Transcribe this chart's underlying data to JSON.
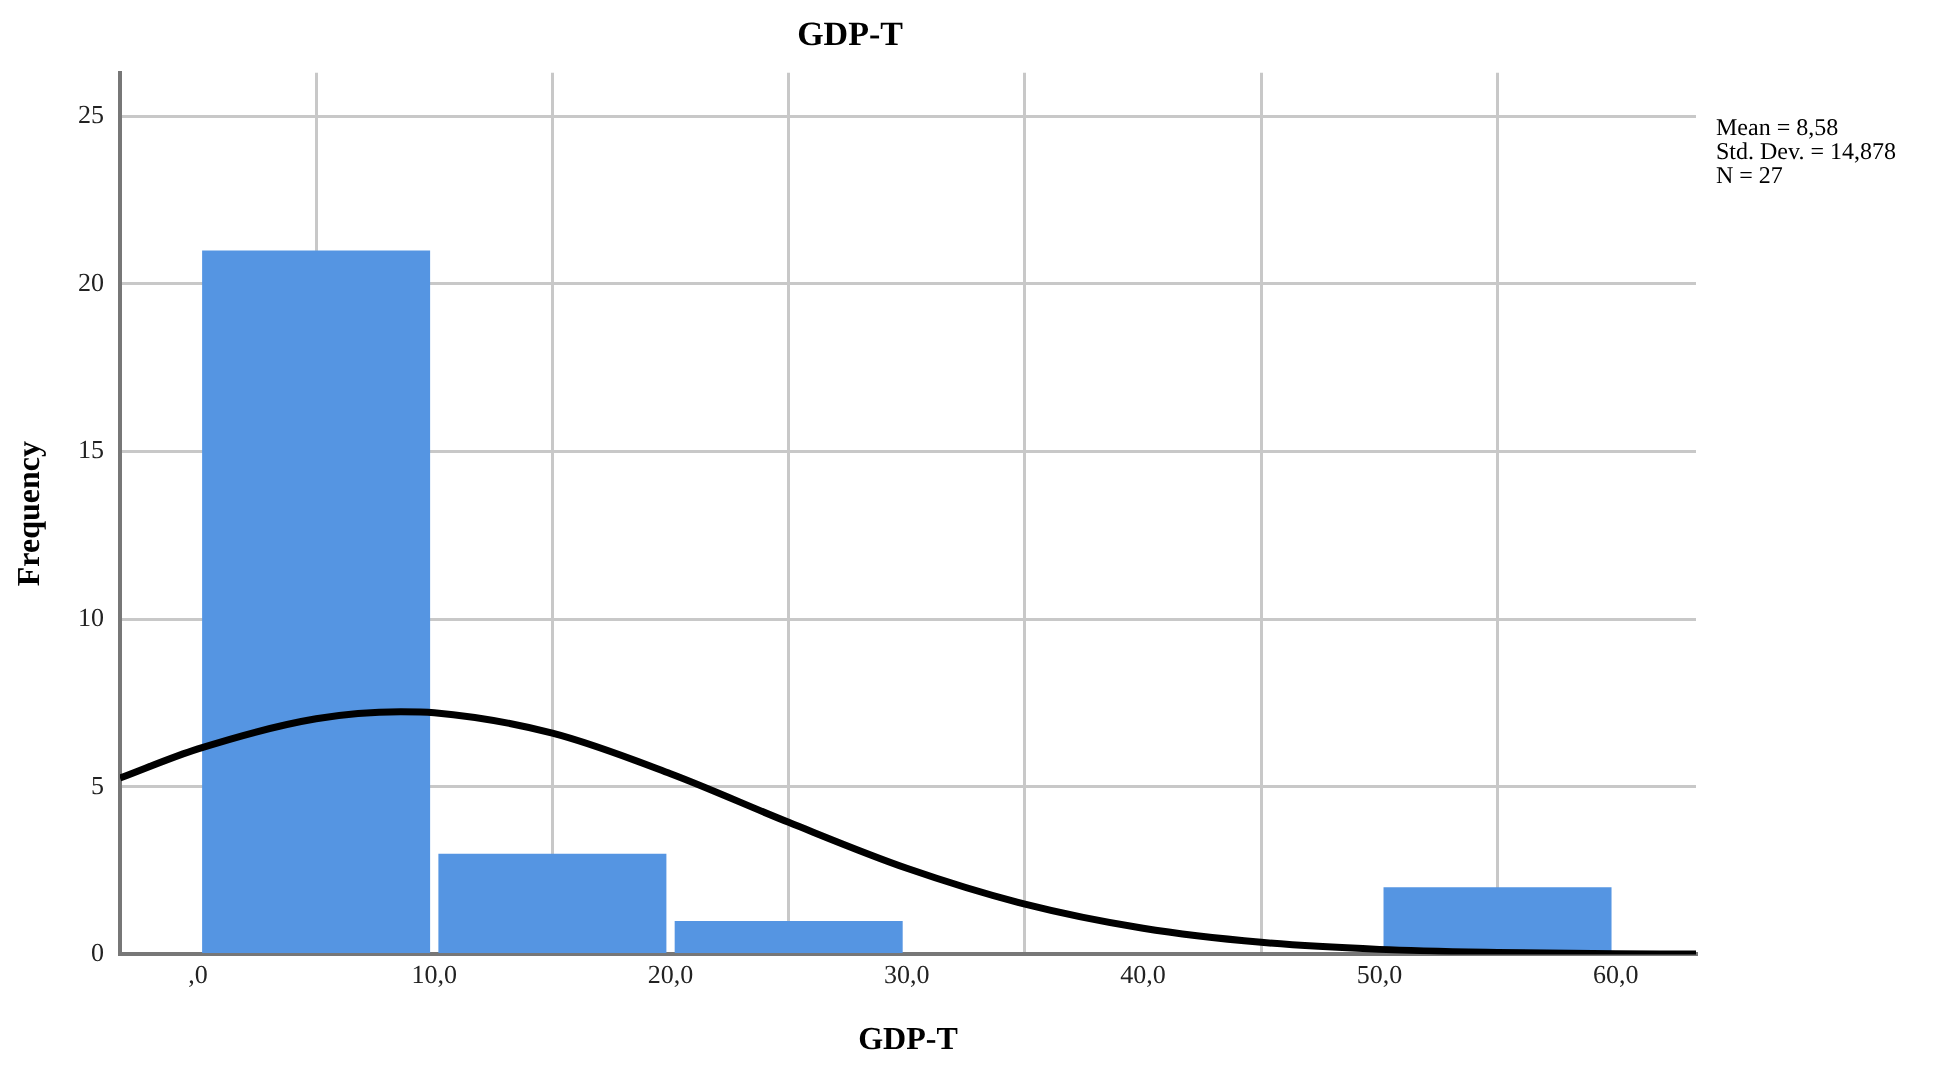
{
  "chart_data": {
    "type": "histogram",
    "title": "GDP-T",
    "xlabel": "GDP-T",
    "ylabel": "Frequency",
    "bins": [
      0,
      10,
      20,
      30,
      40,
      50,
      60
    ],
    "series": [
      {
        "color": "#5595e2",
        "values": [
          21,
          3,
          1,
          0,
          0,
          2
        ]
      },
      {
        "type": "line",
        "color": "#000000",
        "x": [
          -3.3,
          0,
          5,
          8.58,
          10,
          15,
          20,
          25,
          30,
          35,
          40,
          45,
          50,
          55,
          60,
          63.4
        ],
        "values": [
          5.26,
          6.13,
          7.03,
          7.24,
          7.21,
          6.6,
          5.39,
          3.94,
          2.57,
          1.5,
          0.78,
          0.36,
          0.15,
          0.06,
          0.02,
          0.01
        ]
      }
    ],
    "xlim": [
      -3.3,
      63.4
    ],
    "xticks": [
      {
        "value": 0,
        "label": ",0"
      },
      {
        "value": 10,
        "label": "10,0"
      },
      {
        "value": 20,
        "label": "20,0"
      },
      {
        "value": 30,
        "label": "30,0"
      },
      {
        "value": 40,
        "label": "40,0"
      },
      {
        "value": 50,
        "label": "50,0"
      },
      {
        "value": 60,
        "label": "60,0"
      }
    ],
    "ylim": [
      0,
      26.3
    ],
    "yticks": [
      0,
      5,
      10,
      15,
      20,
      25
    ],
    "grid": true,
    "marker": "none",
    "legend": false,
    "annotations": [
      "Mean = 8,58",
      "Std. Dev. = 14,878",
      "N = 27"
    ]
  }
}
